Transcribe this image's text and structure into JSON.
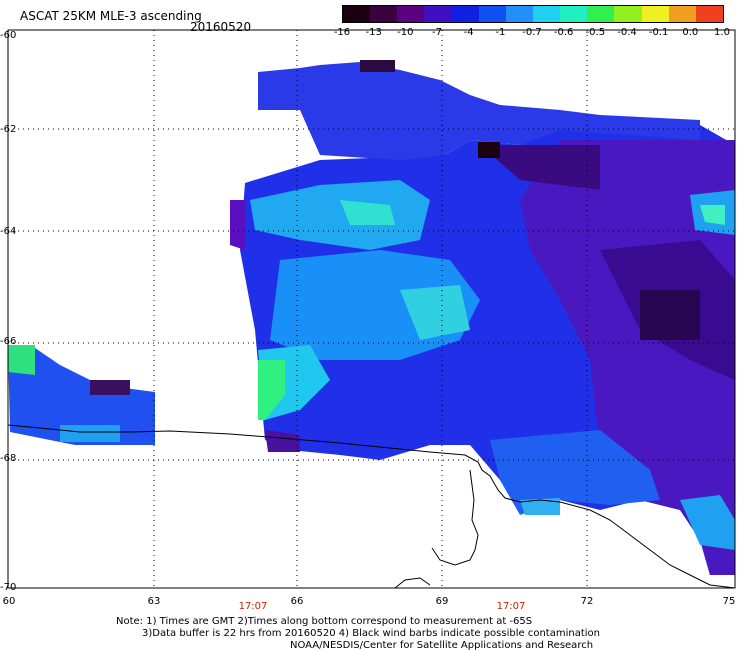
{
  "title": "ASCAT 25KM MLE-3 ascending",
  "date": "20160520",
  "colorbar": {
    "labels": [
      "-16",
      "-13",
      "-10",
      "-7",
      "-4",
      "-1",
      "-0.7",
      "-0.6",
      "-0.5",
      "-0.4",
      "-0.1",
      "0.0",
      "1.0"
    ],
    "colors": [
      "#1a0010",
      "#3a0040",
      "#5a0080",
      "#4010c0",
      "#1020e0",
      "#1050f0",
      "#2090f8",
      "#20d0f0",
      "#20f0c0",
      "#30f050",
      "#90f020",
      "#f0f020",
      "#f0a020",
      "#f04020"
    ]
  },
  "y_ticks": [
    "-60",
    "-62",
    "-64",
    "-66",
    "-68",
    "-70"
  ],
  "x_ticks": [
    "60",
    "63",
    "66",
    "69",
    "72",
    "75"
  ],
  "times": [
    "17:07",
    "17:07"
  ],
  "notes": {
    "line1": "Note: 1) Times are GMT 2)Times along bottom correspond to measurement at -65S",
    "line2": "3)Data buffer is 22 hrs from 20160520 4) Black wind barbs indicate possible contamination",
    "line3": "NOAA/NESDIS/Center for Satellite Applications and Research"
  }
}
